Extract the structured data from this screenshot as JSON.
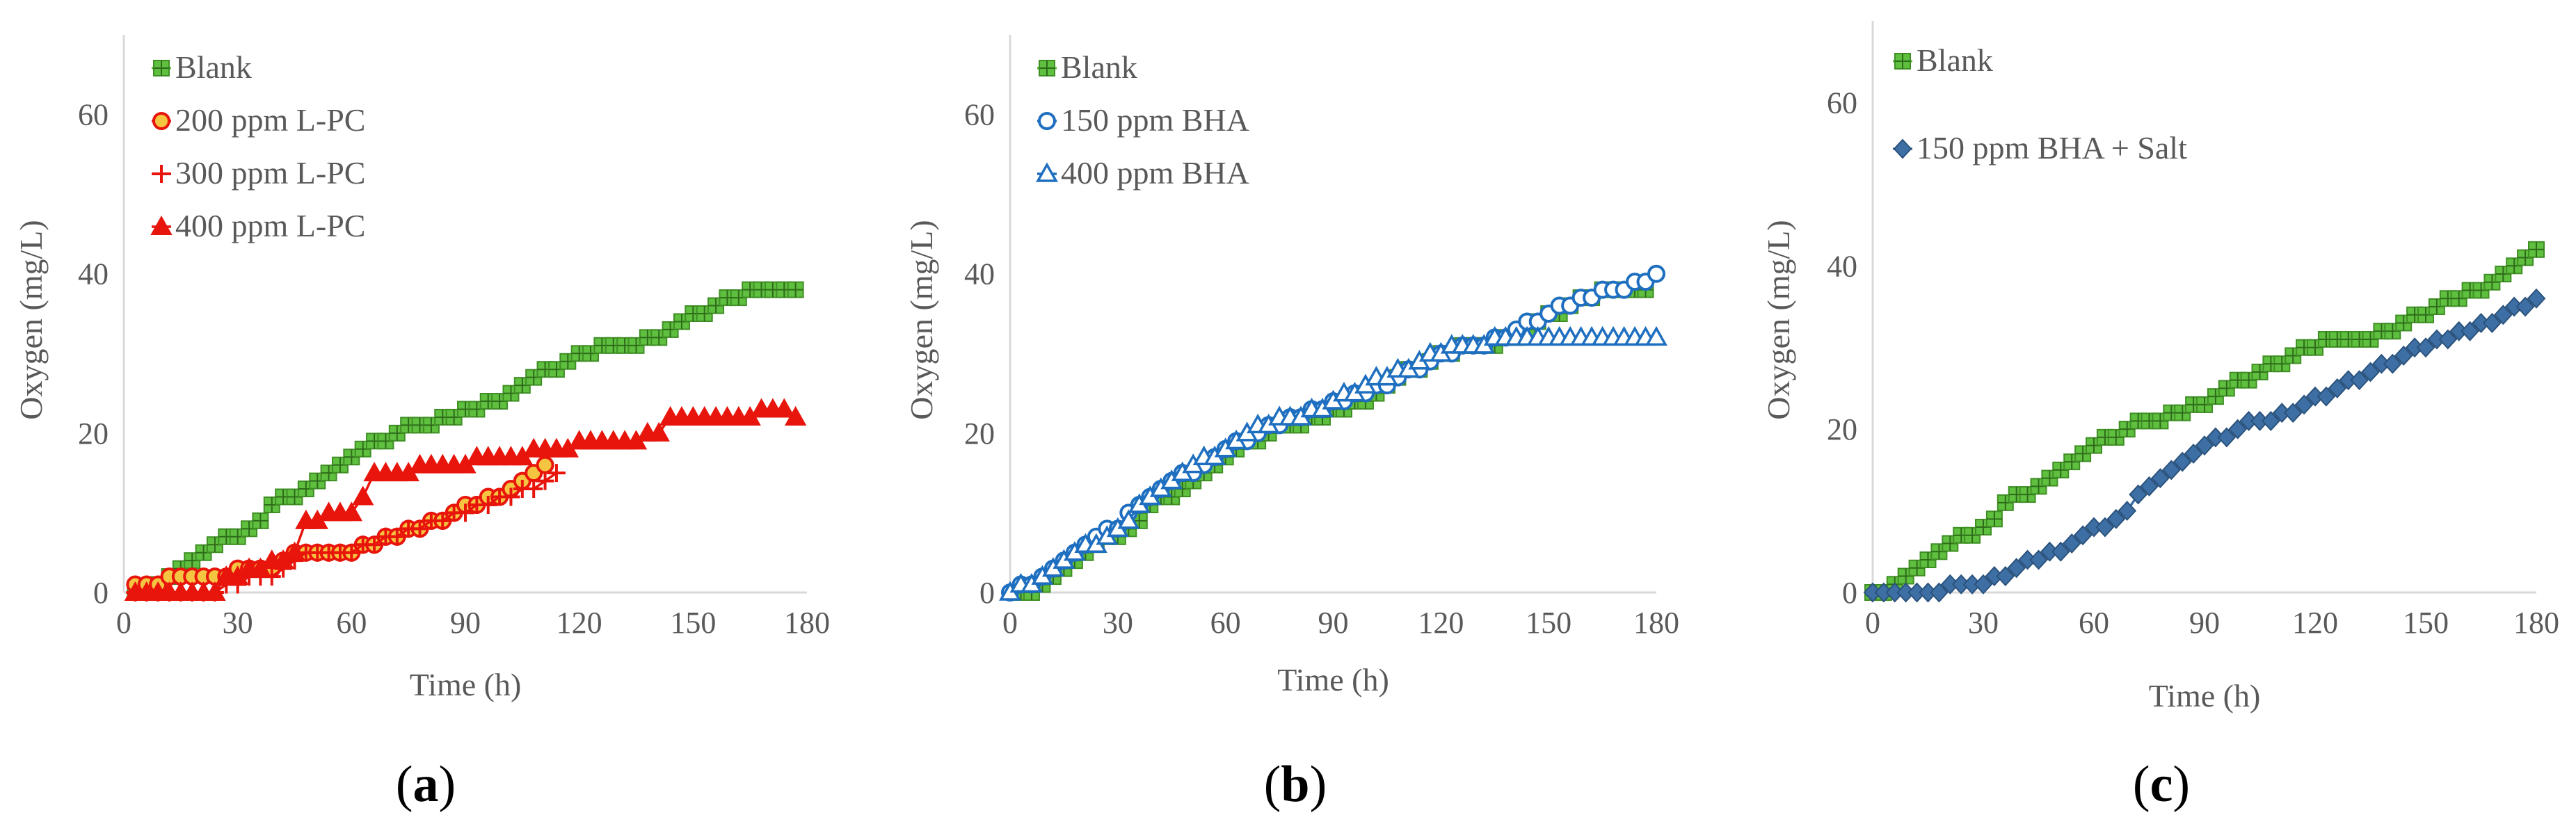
{
  "chart_data": [
    {
      "id": "a",
      "type": "line",
      "panel_label": "a",
      "title": "",
      "xlabel": "Time (h)",
      "ylabel": "Oxygen (mg/L)",
      "xlim": [
        0,
        180
      ],
      "ylim": [
        0,
        70
      ],
      "xticks": [
        0,
        30,
        60,
        90,
        120,
        150,
        180
      ],
      "yticks": [
        0,
        20,
        40,
        60
      ],
      "legend_position": "top-left",
      "series": [
        {
          "name": "Blank",
          "color": "#5fbf3f",
          "marker": "plus-square",
          "x": [
            3,
            6,
            9,
            12,
            15,
            18,
            21,
            24,
            27,
            30,
            33,
            36,
            39,
            42,
            45,
            48,
            51,
            54,
            57,
            60,
            63,
            66,
            69,
            72,
            75,
            78,
            81,
            84,
            87,
            90,
            93,
            96,
            99,
            102,
            105,
            108,
            111,
            114,
            117,
            120,
            123,
            126,
            129,
            132,
            135,
            138,
            141,
            144,
            147,
            150,
            153,
            156,
            159,
            162,
            165,
            168,
            171,
            174,
            177
          ],
          "y": [
            0,
            0,
            1,
            2,
            3,
            4,
            5,
            6,
            7,
            7,
            8,
            9,
            11,
            12,
            12,
            13,
            14,
            15,
            16,
            17,
            18,
            19,
            19,
            20,
            21,
            21,
            21,
            22,
            22,
            23,
            23,
            24,
            24,
            25,
            26,
            27,
            28,
            28,
            29,
            30,
            30,
            31,
            31,
            31,
            31,
            32,
            32,
            33,
            34,
            35,
            35,
            36,
            37,
            37,
            38,
            38,
            38,
            38,
            38
          ]
        },
        {
          "name": "200 ppm L-PC",
          "color": "#e8150c",
          "fill": "#f5c542",
          "marker": "circle",
          "x": [
            3,
            6,
            9,
            12,
            15,
            18,
            21,
            24,
            27,
            30,
            33,
            36,
            39,
            42,
            45,
            48,
            51,
            54,
            57,
            60,
            63,
            66,
            69,
            72,
            75,
            78,
            81,
            84,
            87,
            90,
            93,
            96,
            99,
            102,
            105,
            108,
            111
          ],
          "y": [
            1,
            1,
            1,
            2,
            2,
            2,
            2,
            2,
            2,
            3,
            3,
            3,
            3,
            4,
            5,
            5,
            5,
            5,
            5,
            5,
            6,
            6,
            7,
            7,
            8,
            8,
            9,
            9,
            10,
            11,
            11,
            12,
            12,
            13,
            14,
            15,
            16
          ]
        },
        {
          "name": "300 ppm L-PC",
          "color": "#e8150c",
          "marker": "plus",
          "x": [
            3,
            6,
            9,
            12,
            15,
            18,
            21,
            24,
            27,
            30,
            33,
            36,
            39,
            42,
            45,
            48,
            51,
            54,
            57,
            60,
            63,
            66,
            69,
            72,
            75,
            78,
            81,
            84,
            87,
            90,
            93,
            96,
            99,
            102,
            105,
            108,
            111,
            114
          ],
          "y": [
            0,
            0,
            0,
            0,
            0,
            0,
            0,
            0,
            1,
            1,
            2,
            2,
            2,
            3,
            4,
            5,
            5,
            5,
            5,
            5,
            6,
            6,
            7,
            7,
            8,
            8,
            9,
            9,
            10,
            10,
            11,
            11,
            12,
            12,
            13,
            13,
            14,
            15
          ]
        },
        {
          "name": "400 ppm L-PC",
          "color": "#e8150c",
          "marker": "triangle",
          "x": [
            3,
            6,
            9,
            12,
            15,
            18,
            21,
            24,
            27,
            30,
            33,
            36,
            39,
            42,
            45,
            48,
            51,
            54,
            57,
            60,
            63,
            66,
            69,
            72,
            75,
            78,
            81,
            84,
            87,
            90,
            93,
            96,
            99,
            102,
            105,
            108,
            111,
            114,
            117,
            120,
            123,
            126,
            129,
            132,
            135,
            138,
            141,
            144,
            147,
            150,
            153,
            156,
            159,
            162,
            165,
            168,
            171,
            174,
            177
          ],
          "y": [
            0,
            0,
            0,
            0,
            0,
            0,
            0,
            0,
            2,
            2,
            3,
            3,
            4,
            4,
            5,
            9,
            9,
            10,
            10,
            10,
            12,
            15,
            15,
            15,
            15,
            16,
            16,
            16,
            16,
            16,
            17,
            17,
            17,
            17,
            17,
            18,
            18,
            18,
            18,
            19,
            19,
            19,
            19,
            19,
            19,
            20,
            20,
            22,
            22,
            22,
            22,
            22,
            22,
            22,
            22,
            23,
            23,
            23,
            22
          ]
        }
      ]
    },
    {
      "id": "b",
      "type": "line",
      "panel_label": "b",
      "title": "",
      "xlabel": "Time (h)",
      "ylabel": "Oxygen (mg/L)",
      "xlim": [
        0,
        180
      ],
      "ylim": [
        0,
        70
      ],
      "xticks": [
        0,
        30,
        60,
        90,
        120,
        150,
        180
      ],
      "yticks": [
        0,
        20,
        40,
        60
      ],
      "legend_position": "top-left",
      "series": [
        {
          "name": "Blank",
          "color": "#5fbf3f",
          "marker": "plus-square",
          "x": [
            3,
            6,
            9,
            12,
            15,
            18,
            21,
            24,
            27,
            30,
            33,
            36,
            39,
            42,
            45,
            48,
            51,
            54,
            57,
            60,
            63,
            66,
            69,
            72,
            75,
            78,
            81,
            84,
            87,
            90,
            93,
            96,
            99,
            102,
            105,
            108,
            111,
            114,
            117,
            120,
            123,
            126,
            129,
            132,
            135,
            138,
            141,
            144,
            147,
            150,
            153,
            156,
            159,
            162,
            165,
            168,
            171,
            174,
            177
          ],
          "y": [
            0,
            0,
            1,
            2,
            3,
            4,
            5,
            6,
            7,
            7,
            8,
            9,
            11,
            12,
            12,
            13,
            14,
            15,
            16,
            17,
            18,
            19,
            19,
            20,
            21,
            21,
            21,
            22,
            22,
            23,
            23,
            24,
            24,
            25,
            26,
            27,
            28,
            28,
            29,
            30,
            30,
            31,
            31,
            31,
            31,
            32,
            32,
            33,
            34,
            35,
            35,
            36,
            37,
            37,
            38,
            38,
            38,
            38,
            38
          ]
        },
        {
          "name": "150 ppm BHA",
          "color": "#1f6fc0",
          "marker": "circle",
          "x": [
            0,
            3,
            6,
            9,
            12,
            15,
            18,
            21,
            24,
            27,
            30,
            33,
            36,
            39,
            42,
            45,
            48,
            51,
            54,
            57,
            60,
            63,
            66,
            69,
            72,
            75,
            78,
            81,
            84,
            87,
            90,
            93,
            96,
            99,
            102,
            105,
            108,
            111,
            114,
            117,
            120,
            123,
            126,
            129,
            132,
            135,
            138,
            141,
            144,
            147,
            150,
            153,
            156,
            159,
            162,
            165,
            168,
            171,
            174,
            177,
            180
          ],
          "y": [
            0,
            1,
            1,
            2,
            3,
            4,
            5,
            6,
            7,
            8,
            8,
            10,
            11,
            12,
            13,
            14,
            15,
            15,
            16,
            17,
            18,
            19,
            19,
            20,
            21,
            21,
            22,
            22,
            23,
            23,
            24,
            24,
            25,
            25,
            26,
            26,
            27,
            28,
            28,
            29,
            30,
            30,
            31,
            31,
            31,
            32,
            32,
            33,
            34,
            34,
            35,
            36,
            36,
            37,
            37,
            38,
            38,
            38,
            39,
            39,
            40
          ]
        },
        {
          "name": "400 ppm BHA",
          "color": "#1f6fc0",
          "marker": "triangle-open",
          "x": [
            0,
            3,
            6,
            9,
            12,
            15,
            18,
            21,
            24,
            27,
            30,
            33,
            36,
            39,
            42,
            45,
            48,
            51,
            54,
            57,
            60,
            63,
            66,
            69,
            72,
            75,
            78,
            81,
            84,
            87,
            90,
            93,
            96,
            99,
            102,
            105,
            108,
            111,
            114,
            117,
            120,
            123,
            126,
            129,
            132,
            135,
            138,
            141,
            144,
            147,
            150,
            153,
            156,
            159,
            162,
            165,
            168,
            171,
            174,
            177,
            180
          ],
          "y": [
            0,
            1,
            1,
            2,
            3,
            4,
            5,
            6,
            6,
            7,
            8,
            9,
            11,
            12,
            13,
            14,
            15,
            16,
            17,
            17,
            18,
            19,
            20,
            21,
            21,
            22,
            22,
            22,
            23,
            23,
            24,
            25,
            25,
            26,
            27,
            27,
            28,
            28,
            29,
            30,
            30,
            31,
            31,
            31,
            31,
            32,
            32,
            32,
            32,
            32,
            32,
            32,
            32,
            32,
            32,
            32,
            32,
            32,
            32,
            32,
            32
          ]
        }
      ]
    },
    {
      "id": "c",
      "type": "line",
      "panel_label": "c",
      "title": "",
      "xlabel": "Time (h)",
      "ylabel": "Oxygen (mg/L)",
      "xlim": [
        0,
        180
      ],
      "ylim": [
        0,
        70
      ],
      "xticks": [
        0,
        30,
        60,
        90,
        120,
        150,
        180
      ],
      "yticks": [
        0,
        20,
        40,
        60
      ],
      "legend_position": "top-left",
      "series": [
        {
          "name": "Blank",
          "color": "#5fbf3f",
          "marker": "plus-square",
          "x": [
            0,
            3,
            6,
            9,
            12,
            15,
            18,
            21,
            24,
            27,
            30,
            33,
            36,
            39,
            42,
            45,
            48,
            51,
            54,
            57,
            60,
            63,
            66,
            69,
            72,
            75,
            78,
            81,
            84,
            87,
            90,
            93,
            96,
            99,
            102,
            105,
            108,
            111,
            114,
            117,
            120,
            123,
            126,
            129,
            132,
            135,
            138,
            141,
            144,
            147,
            150,
            153,
            156,
            159,
            162,
            165,
            168,
            171,
            174,
            177,
            180
          ],
          "y": [
            0,
            0,
            1,
            2,
            3,
            4,
            5,
            6,
            7,
            7,
            8,
            9,
            11,
            12,
            12,
            13,
            14,
            15,
            16,
            17,
            18,
            19,
            19,
            20,
            21,
            21,
            21,
            22,
            22,
            23,
            23,
            24,
            25,
            26,
            26,
            27,
            28,
            28,
            29,
            30,
            30,
            31,
            31,
            31,
            31,
            31,
            32,
            32,
            33,
            34,
            34,
            35,
            36,
            36,
            37,
            37,
            38,
            39,
            40,
            41,
            42
          ]
        },
        {
          "name": "150 ppm BHA + Salt",
          "color": "#3d6fa5",
          "marker": "diamond",
          "x": [
            0,
            3,
            6,
            9,
            12,
            15,
            18,
            21,
            24,
            27,
            30,
            33,
            36,
            39,
            42,
            45,
            48,
            51,
            54,
            57,
            60,
            63,
            66,
            69,
            72,
            75,
            78,
            81,
            84,
            87,
            90,
            93,
            96,
            99,
            102,
            105,
            108,
            111,
            114,
            117,
            120,
            123,
            126,
            129,
            132,
            135,
            138,
            141,
            144,
            147,
            150,
            153,
            156,
            159,
            162,
            165,
            168,
            171,
            174,
            177,
            180
          ],
          "y": [
            0,
            0,
            0,
            0,
            0,
            0,
            0,
            1,
            1,
            1,
            1,
            2,
            2,
            3,
            4,
            4,
            5,
            5,
            6,
            7,
            8,
            8,
            9,
            10,
            12,
            13,
            14,
            15,
            16,
            17,
            18,
            19,
            19,
            20,
            21,
            21,
            21,
            22,
            22,
            23,
            24,
            24,
            25,
            26,
            26,
            27,
            28,
            28,
            29,
            30,
            30,
            31,
            31,
            32,
            32,
            33,
            33,
            34,
            35,
            35,
            36
          ]
        }
      ]
    }
  ]
}
